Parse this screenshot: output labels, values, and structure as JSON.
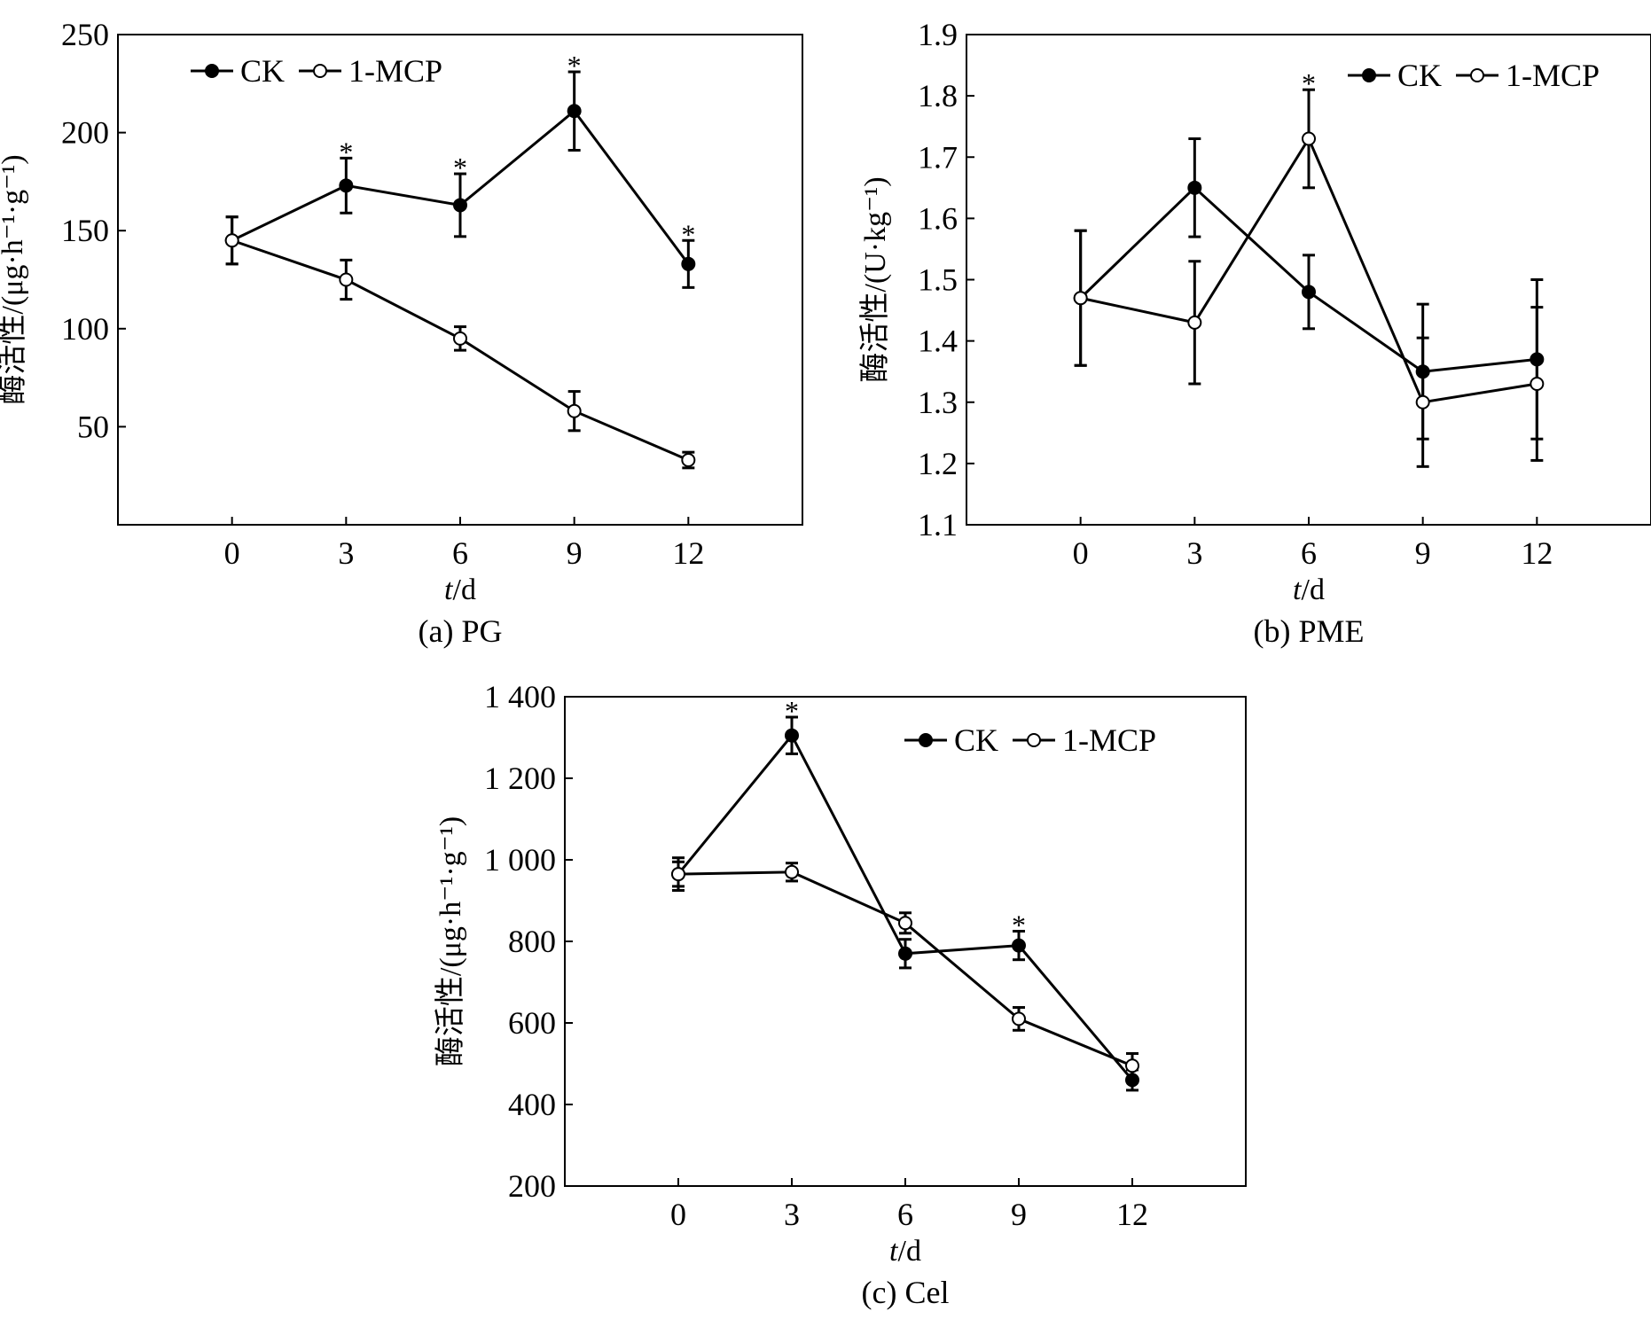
{
  "chart_data": [
    {
      "type": "line",
      "caption": "(a) PG",
      "xlabel_italic": "t",
      "xlabel_unit": "/d",
      "ylabel": "酶活性/(μg·h⁻¹·g⁻¹)",
      "x": [
        0,
        3,
        6,
        9,
        12
      ],
      "x_ticks": [
        "0",
        "3",
        "6",
        "9",
        "12"
      ],
      "xlim": [
        -3,
        15
      ],
      "ylim": [
        0,
        250
      ],
      "y_ticks": [
        50,
        100,
        150,
        200,
        250
      ],
      "y_tick_labels": [
        "50",
        "100",
        "150",
        "200",
        "250"
      ],
      "legend_position": "top-left",
      "series": [
        {
          "name": "CK",
          "marker": "filled",
          "values": [
            145,
            173,
            163,
            211,
            133
          ],
          "errors": [
            12,
            14,
            16,
            20,
            12
          ]
        },
        {
          "name": "1-MCP",
          "marker": "open",
          "values": [
            145,
            125,
            95,
            58,
            33
          ],
          "errors": [
            12,
            10,
            6,
            10,
            4
          ]
        }
      ],
      "significance": [
        {
          "x": 3,
          "label": "*"
        },
        {
          "x": 6,
          "label": "*"
        },
        {
          "x": 9,
          "label": "*"
        },
        {
          "x": 12,
          "label": "*"
        }
      ]
    },
    {
      "type": "line",
      "caption": "(b) PME",
      "xlabel_italic": "t",
      "xlabel_unit": "/d",
      "ylabel": "酶活性/(U·kg⁻¹)",
      "x": [
        0,
        3,
        6,
        9,
        12
      ],
      "x_ticks": [
        "0",
        "3",
        "6",
        "9",
        "12"
      ],
      "xlim": [
        -3,
        15
      ],
      "ylim": [
        1.1,
        1.9
      ],
      "y_ticks": [
        1.1,
        1.2,
        1.3,
        1.4,
        1.5,
        1.6,
        1.7,
        1.8,
        1.9
      ],
      "y_tick_labels": [
        "1.1",
        "1.2",
        "1.3",
        "1.4",
        "1.5",
        "1.6",
        "1.7",
        "1.8",
        "1.9"
      ],
      "legend_position": "top-right",
      "series": [
        {
          "name": "CK",
          "marker": "filled",
          "values": [
            1.47,
            1.65,
            1.48,
            1.35,
            1.37
          ],
          "errors": [
            0.11,
            0.08,
            0.06,
            0.11,
            0.13
          ]
        },
        {
          "name": "1-MCP",
          "marker": "open",
          "values": [
            1.47,
            1.43,
            1.73,
            1.3,
            1.33
          ],
          "errors": [
            0.11,
            0.1,
            0.08,
            0.105,
            0.125
          ]
        }
      ],
      "significance": [
        {
          "x": 6,
          "label": "*"
        }
      ]
    },
    {
      "type": "line",
      "caption": "(c) Cel",
      "xlabel_italic": "t",
      "xlabel_unit": "/d",
      "ylabel": "酶活性/(μg·h⁻¹·g⁻¹)",
      "x": [
        0,
        3,
        6,
        9,
        12
      ],
      "x_ticks": [
        "0",
        "3",
        "6",
        "9",
        "12"
      ],
      "xlim": [
        -3,
        15
      ],
      "ylim": [
        200,
        1400
      ],
      "y_ticks": [
        200,
        400,
        600,
        800,
        1000,
        1200,
        1400
      ],
      "y_tick_labels": [
        "200",
        "400",
        "600",
        "800",
        "1 000",
        "1 200",
        "1 400"
      ],
      "legend_position": "top-right",
      "series": [
        {
          "name": "CK",
          "marker": "filled",
          "values": [
            965,
            1305,
            770,
            790,
            460
          ],
          "errors": [
            40,
            45,
            35,
            35,
            25
          ]
        },
        {
          "name": "1-MCP",
          "marker": "open",
          "values": [
            965,
            970,
            845,
            610,
            495
          ],
          "errors": [
            30,
            22,
            25,
            28,
            30
          ]
        }
      ],
      "significance": [
        {
          "x": 3,
          "label": "*"
        },
        {
          "x": 9,
          "label": "*"
        }
      ]
    }
  ]
}
